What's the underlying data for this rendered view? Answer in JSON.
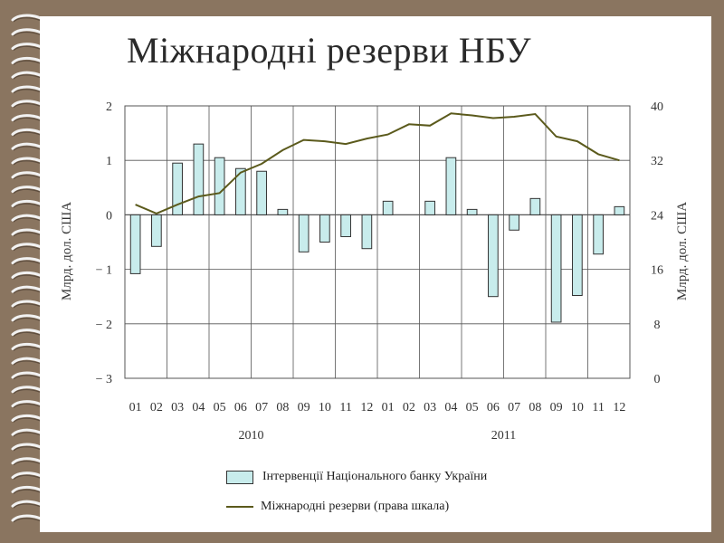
{
  "slide_title": "Міжнародні резерви НБУ",
  "colors": {
    "background": "#8a7560",
    "bar_fill": "#c8ecec",
    "bar_stroke": "#333333",
    "line": "#5b5a1c",
    "grid": "#555555"
  },
  "chart_data": {
    "type": "bar+line",
    "categories": [
      "01",
      "02",
      "03",
      "04",
      "05",
      "06",
      "07",
      "08",
      "09",
      "10",
      "11",
      "12",
      "01",
      "02",
      "03",
      "04",
      "05",
      "06",
      "07",
      "08",
      "09",
      "10",
      "11",
      "12"
    ],
    "years": [
      {
        "label": "2010",
        "start_index": 0,
        "end_index": 11
      },
      {
        "label": "2011",
        "start_index": 12,
        "end_index": 23
      }
    ],
    "series": [
      {
        "name": "Інтервенції Національного банку України",
        "type": "bar",
        "axis": "left",
        "values": [
          -1.08,
          -0.58,
          0.95,
          1.3,
          1.05,
          0.85,
          0.8,
          0.1,
          -0.68,
          -0.5,
          -0.4,
          -0.62,
          0.25,
          0.0,
          0.25,
          1.05,
          0.1,
          -1.5,
          -0.28,
          0.3,
          -1.97,
          -1.48,
          -0.72,
          0.15
        ]
      },
      {
        "name": "Міжнародні резерви (права шкала)",
        "type": "line",
        "axis": "right",
        "values": [
          25.5,
          24.2,
          25.5,
          26.7,
          27.2,
          30.2,
          31.5,
          33.5,
          35.0,
          34.8,
          34.4,
          35.2,
          35.8,
          37.3,
          37.1,
          38.9,
          38.6,
          38.2,
          38.4,
          38.8,
          35.5,
          34.8,
          32.9,
          32.0
        ]
      }
    ],
    "y_left": {
      "label": "Млрд. дол. США",
      "ticks": [
        2,
        1,
        0,
        -1,
        -2,
        -3
      ],
      "tick_labels": [
        "2",
        "1",
        "0",
        "− 1",
        "− 2",
        "− 3"
      ],
      "range": [
        -3,
        2
      ]
    },
    "y_right": {
      "label": "Млрд. дол. США",
      "ticks": [
        40,
        32,
        24,
        16,
        8,
        0
      ],
      "tick_labels": [
        "40",
        "32",
        "24",
        "16",
        "8",
        "0"
      ],
      "range": [
        0,
        40
      ]
    },
    "grid": true,
    "legend_position": "bottom"
  }
}
